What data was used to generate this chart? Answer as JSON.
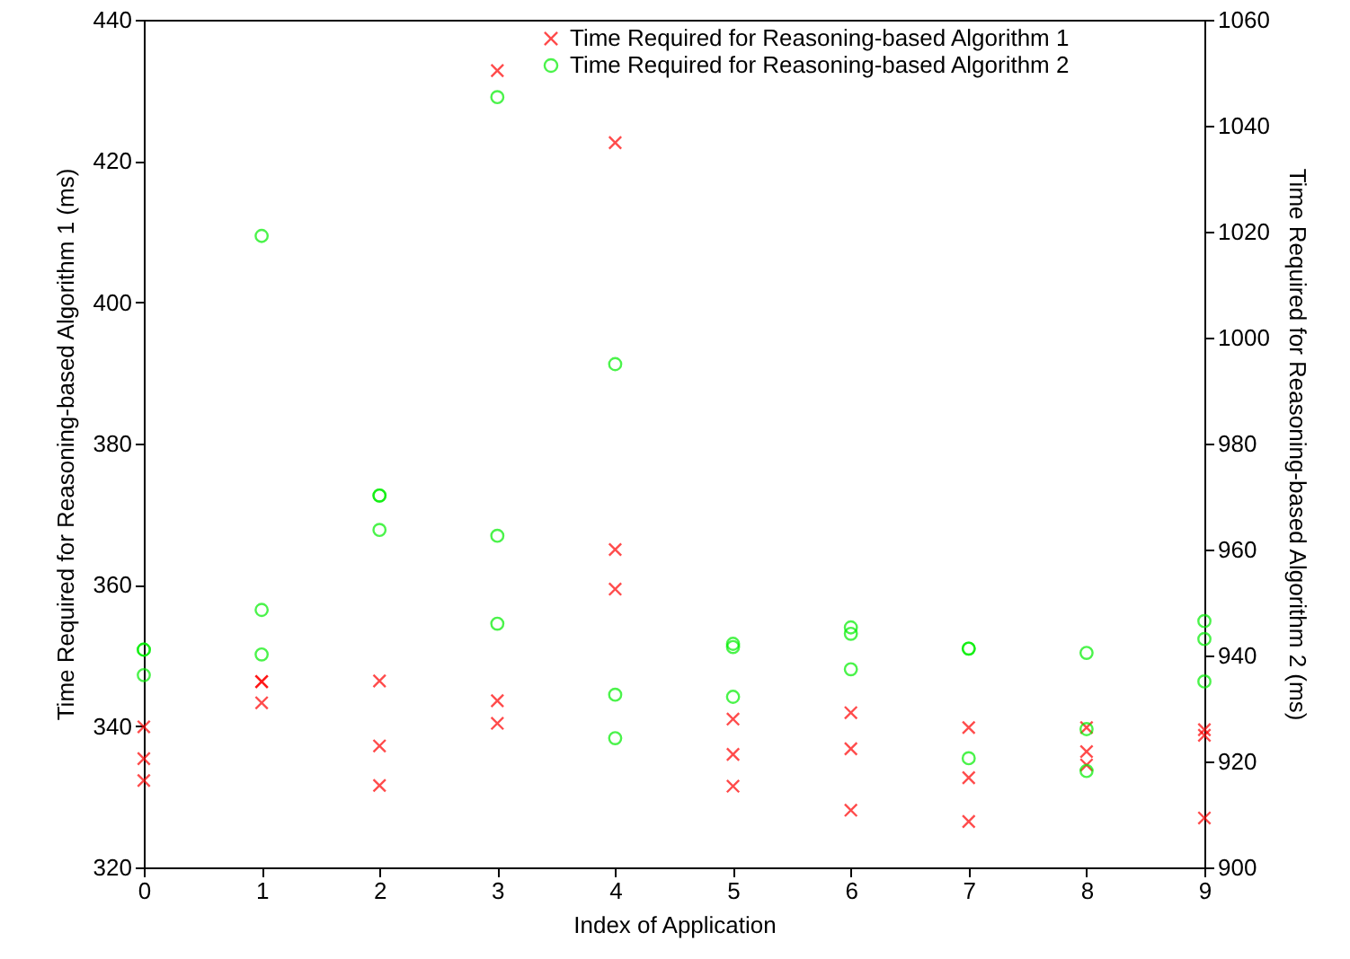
{
  "chart_data": {
    "type": "scatter",
    "xlabel": "Index of Application",
    "ylabel": "Time Required for Reasoning-based Algorithm 1 (ms)",
    "y2label": "Time Required for Reasoning-based Algorithm 2 (ms)",
    "xlim": [
      0,
      9
    ],
    "xticks": [
      0,
      1,
      2,
      3,
      4,
      5,
      6,
      7,
      8,
      9
    ],
    "ylim": [
      320,
      440
    ],
    "yticks": [
      320,
      340,
      360,
      380,
      400,
      420,
      440
    ],
    "y2lim": [
      900,
      1060
    ],
    "y2ticks": [
      900,
      920,
      940,
      960,
      980,
      1000,
      1020,
      1040,
      1060
    ],
    "grid": false,
    "legend": "top right",
    "series": [
      {
        "name": "Time Required for Reasoning-based Algorithm 1",
        "color": "#ff0000",
        "marker": "cross",
        "axis": "y",
        "x": [
          0,
          0,
          0,
          1,
          1,
          1,
          2,
          2,
          2,
          3,
          3,
          3,
          4,
          4,
          4,
          5,
          5,
          5,
          6,
          6,
          6,
          7,
          7,
          7,
          8,
          8,
          8,
          9,
          9,
          9
        ],
        "values": [
          339.9,
          335.4,
          332.3,
          346.3,
          346.3,
          343.3,
          346.4,
          337.2,
          331.6,
          432.8,
          343.6,
          340.4,
          422.6,
          365.0,
          359.4,
          341.0,
          336.0,
          331.5,
          341.9,
          336.8,
          328.1,
          339.8,
          332.7,
          326.5,
          339.8,
          336.4,
          334.5,
          339.5,
          338.7,
          327.0
        ]
      },
      {
        "name": "Time Required for Reasoning-based Algorithm 2",
        "color": "#00ee00",
        "marker": "circle",
        "axis": "y2",
        "x": [
          0,
          0,
          0,
          1,
          1,
          1,
          2,
          2,
          2,
          3,
          3,
          3,
          4,
          4,
          4,
          5,
          5,
          5,
          6,
          6,
          6,
          7,
          7,
          7,
          8,
          8,
          8,
          9,
          9,
          9
        ],
        "values": [
          941.1,
          941.1,
          936.3,
          1019.2,
          948.6,
          940.2,
          970.2,
          970.2,
          963.7,
          1045.4,
          962.6,
          946.0,
          995.0,
          932.6,
          924.4,
          942.2,
          941.6,
          932.2,
          945.3,
          944.1,
          937.4,
          941.3,
          941.3,
          920.6,
          940.5,
          926.1,
          918.2,
          946.5,
          943.1,
          935.1
        ]
      }
    ]
  }
}
